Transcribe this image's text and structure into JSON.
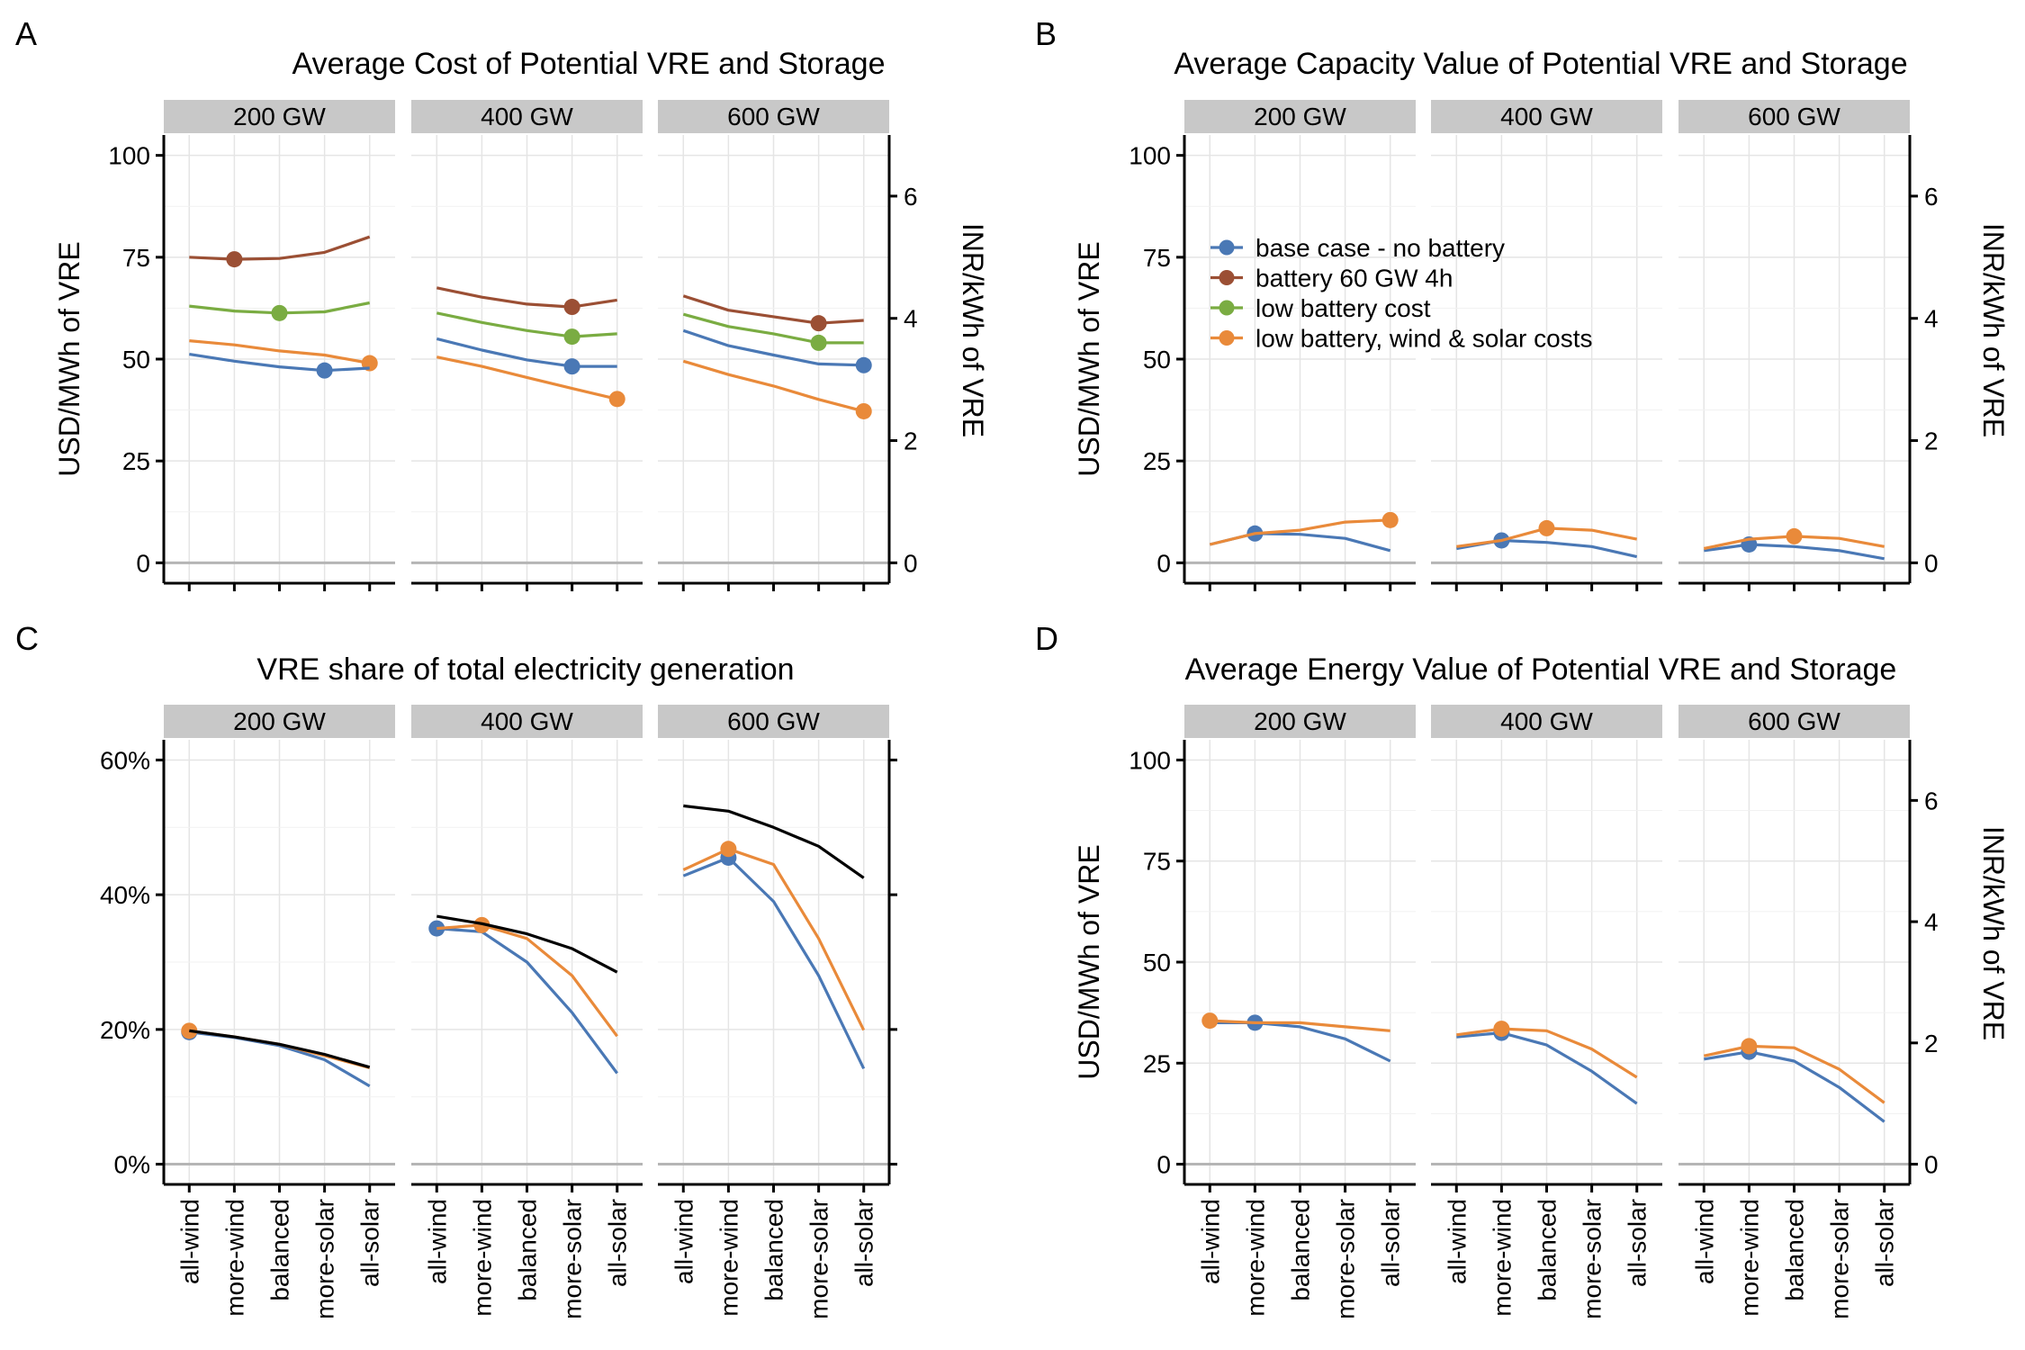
{
  "figure": {
    "categories": [
      "all-wind",
      "more-wind",
      "balanced",
      "more-solar",
      "all-solar"
    ],
    "facets": [
      "200 GW",
      "400 GW",
      "600 GW"
    ],
    "legend": {
      "placement": "inside top-left of panel B",
      "entries": [
        {
          "name": "base case - no battery",
          "color": "#4a78b5"
        },
        {
          "name": "battery 60 GW 4h",
          "color": "#9b4f34"
        },
        {
          "name": "low battery cost",
          "color": "#7aac42"
        },
        {
          "name": "low battery, wind & solar costs",
          "color": "#e98a3a"
        }
      ]
    },
    "colors": {
      "frame": "#000000",
      "grid": "#e5e5e5",
      "strip": "#c8c8c8",
      "zero_line": "#b5b5b5",
      "total": "#000000"
    }
  },
  "chart_data": [
    {
      "id": "A",
      "panel_label": "A",
      "type": "line",
      "title": "Average Cost of Potential VRE and Storage",
      "ylabel": "USD/MWh of VRE",
      "y2label": "INR/kWh of VRE",
      "ylim": [
        -5,
        105
      ],
      "yticks": [
        "0",
        "25",
        "50",
        "75",
        "100"
      ],
      "y2ticks": [
        "0",
        "2",
        "4",
        "6"
      ],
      "grid": true,
      "x_tick_labels_shown": false,
      "facets": [
        {
          "facet": "200 GW",
          "series": [
            {
              "name": "battery 60 GW 4h",
              "color": "#9b4f34",
              "values": [
                75,
                74.5,
                74.7,
                76.2,
                80
              ],
              "highlight_index": 1
            },
            {
              "name": "low battery cost",
              "color": "#7aac42",
              "values": [
                63,
                61.8,
                61.3,
                61.6,
                63.8
              ],
              "highlight_index": 2
            },
            {
              "name": "low battery, wind & solar costs",
              "color": "#e98a3a",
              "values": [
                54.5,
                53.5,
                52,
                51,
                49
              ],
              "highlight_index": 4
            },
            {
              "name": "base case - no battery",
              "color": "#4a78b5",
              "values": [
                51.2,
                49.5,
                48.1,
                47.2,
                47.8
              ],
              "highlight_index": 3
            }
          ]
        },
        {
          "facet": "400 GW",
          "series": [
            {
              "name": "battery 60 GW 4h",
              "color": "#9b4f34",
              "values": [
                67.5,
                65.2,
                63.5,
                62.8,
                64.5
              ],
              "highlight_index": 3
            },
            {
              "name": "low battery cost",
              "color": "#7aac42",
              "values": [
                61.3,
                59,
                57,
                55.5,
                56.2
              ],
              "highlight_index": 3
            },
            {
              "name": "base case - no battery",
              "color": "#4a78b5",
              "values": [
                55,
                52.2,
                49.8,
                48.2,
                48.2
              ],
              "highlight_index": 3
            },
            {
              "name": "low battery, wind & solar costs",
              "color": "#e98a3a",
              "values": [
                50.5,
                48.2,
                45.5,
                42.8,
                40.2
              ],
              "highlight_index": 4
            }
          ]
        },
        {
          "facet": "600 GW",
          "series": [
            {
              "name": "battery 60 GW 4h",
              "color": "#9b4f34",
              "values": [
                65.5,
                62,
                60.4,
                58.8,
                59.5
              ],
              "highlight_index": 3
            },
            {
              "name": "low battery cost",
              "color": "#7aac42",
              "values": [
                61,
                58,
                56.2,
                54,
                54
              ],
              "highlight_index": 3
            },
            {
              "name": "base case - no battery",
              "color": "#4a78b5",
              "values": [
                57,
                53.3,
                51,
                48.8,
                48.5
              ],
              "highlight_index": 4
            },
            {
              "name": "low battery, wind & solar costs",
              "color": "#e98a3a",
              "values": [
                49.5,
                46.2,
                43.4,
                40.1,
                37.2
              ],
              "highlight_index": 4
            }
          ]
        }
      ]
    },
    {
      "id": "B",
      "panel_label": "B",
      "type": "line",
      "title": "Average Capacity Value of Potential VRE and Storage",
      "ylabel": "USD/MWh of VRE",
      "y2label": "INR/kWh of VRE",
      "ylim": [
        -5,
        105
      ],
      "yticks": [
        "0",
        "25",
        "50",
        "75",
        "100"
      ],
      "y2ticks": [
        "0",
        "2",
        "4",
        "6"
      ],
      "grid": true,
      "x_tick_labels_shown": false,
      "facets": [
        {
          "facet": "200 GW",
          "series": [
            {
              "name": "base case - no battery",
              "color": "#4a78b5",
              "values": [
                4.5,
                7.2,
                7,
                6,
                3
              ],
              "highlight_index": 1
            },
            {
              "name": "low battery, wind & solar costs",
              "color": "#e98a3a",
              "values": [
                4.5,
                7.2,
                8,
                10,
                10.5
              ],
              "highlight_index": 4
            }
          ]
        },
        {
          "facet": "400 GW",
          "series": [
            {
              "name": "base case - no battery",
              "color": "#4a78b5",
              "values": [
                3.5,
                5.5,
                5,
                4,
                1.5
              ],
              "highlight_index": 1
            },
            {
              "name": "low battery, wind & solar costs",
              "color": "#e98a3a",
              "values": [
                4,
                5.5,
                8.5,
                8,
                5.8
              ],
              "highlight_index": 2
            }
          ]
        },
        {
          "facet": "600 GW",
          "series": [
            {
              "name": "base case - no battery",
              "color": "#4a78b5",
              "values": [
                3,
                4.5,
                4,
                3,
                1
              ],
              "highlight_index": 1
            },
            {
              "name": "low battery, wind & solar costs",
              "color": "#e98a3a",
              "values": [
                3.5,
                5.8,
                6.5,
                6,
                4
              ],
              "highlight_index": 2
            }
          ]
        }
      ]
    },
    {
      "id": "C",
      "panel_label": "C",
      "type": "line",
      "title": "VRE share of total electricity generation",
      "ylabel": "",
      "y2label": "",
      "ylim": [
        -3,
        63
      ],
      "yticks": [
        "0%",
        "20%",
        "40%",
        "60%"
      ],
      "grid": true,
      "x_tick_labels_shown": true,
      "facets": [
        {
          "facet": "200 GW",
          "series": [
            {
              "name": "base case - no battery",
              "color": "#4a78b5",
              "values": [
                19.6,
                18.8,
                17.6,
                15.5,
                11.6
              ],
              "highlight_index": 0
            },
            {
              "name": "low battery, wind & solar costs",
              "color": "#e98a3a",
              "values": [
                19.8,
                18.9,
                17.8,
                16.1,
                14.3
              ],
              "highlight_index": 0
            },
            {
              "name": "total",
              "color": "#000000",
              "values": [
                19.8,
                18.9,
                17.8,
                16.3,
                14.4
              ],
              "highlight_index": null
            }
          ]
        },
        {
          "facet": "400 GW",
          "series": [
            {
              "name": "base case - no battery",
              "color": "#4a78b5",
              "values": [
                35,
                34.5,
                30,
                22.5,
                13.5
              ],
              "highlight_index": 0
            },
            {
              "name": "low battery, wind & solar costs",
              "color": "#e98a3a",
              "values": [
                35,
                35.5,
                33.5,
                28,
                19
              ],
              "highlight_index": 1
            },
            {
              "name": "total",
              "color": "#000000",
              "values": [
                36.8,
                35.7,
                34.2,
                32,
                28.5
              ],
              "highlight_index": null
            }
          ]
        },
        {
          "facet": "600 GW",
          "series": [
            {
              "name": "base case - no battery",
              "color": "#4a78b5",
              "values": [
                42.8,
                45.5,
                39,
                28,
                14.2
              ],
              "highlight_index": 1
            },
            {
              "name": "low battery, wind & solar costs",
              "color": "#e98a3a",
              "values": [
                43.7,
                46.8,
                44.5,
                33.5,
                19.9
              ],
              "highlight_index": 1
            },
            {
              "name": "total",
              "color": "#000000",
              "values": [
                53.2,
                52.4,
                50,
                47.2,
                42.5
              ],
              "highlight_index": null
            }
          ]
        }
      ]
    },
    {
      "id": "D",
      "panel_label": "D",
      "type": "line",
      "title": "Average Energy Value of Potential VRE and Storage",
      "ylabel": "USD/MWh of VRE",
      "y2label": "INR/kWh of VRE",
      "ylim": [
        -5,
        105
      ],
      "yticks": [
        "0",
        "25",
        "50",
        "75",
        "100"
      ],
      "y2ticks": [
        "0",
        "2",
        "4",
        "6"
      ],
      "grid": true,
      "x_tick_labels_shown": true,
      "facets": [
        {
          "facet": "200 GW",
          "series": [
            {
              "name": "base case - no battery",
              "color": "#4a78b5",
              "values": [
                35,
                35,
                34,
                31,
                25.5
              ],
              "highlight_index": 1
            },
            {
              "name": "low battery, wind & solar costs",
              "color": "#e98a3a",
              "values": [
                35.5,
                35,
                35,
                34,
                33
              ],
              "highlight_index": 0
            }
          ]
        },
        {
          "facet": "400 GW",
          "series": [
            {
              "name": "base case - no battery",
              "color": "#4a78b5",
              "values": [
                31.5,
                32.5,
                29.5,
                23,
                15
              ],
              "highlight_index": 1
            },
            {
              "name": "low battery, wind & solar costs",
              "color": "#e98a3a",
              "values": [
                32,
                33.5,
                33,
                28.5,
                21.5
              ],
              "highlight_index": 1
            }
          ]
        },
        {
          "facet": "600 GW",
          "series": [
            {
              "name": "base case - no battery",
              "color": "#4a78b5",
              "values": [
                26,
                27.8,
                25.5,
                19,
                10.5
              ],
              "highlight_index": 1
            },
            {
              "name": "low battery, wind & solar costs",
              "color": "#e98a3a",
              "values": [
                26.8,
                29.2,
                28.8,
                23.5,
                15.2
              ],
              "highlight_index": 1
            }
          ]
        }
      ]
    }
  ]
}
